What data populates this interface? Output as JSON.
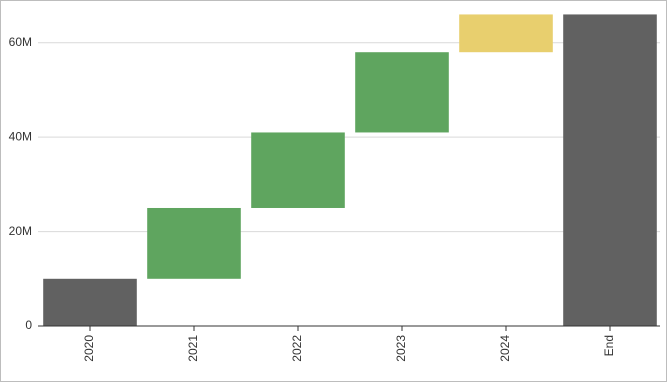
{
  "chart_data": {
    "type": "waterfall",
    "categories": [
      "2020",
      "2021",
      "2022",
      "2023",
      "2024",
      "End"
    ],
    "values": [
      10000000,
      15000000,
      16000000,
      17000000,
      8000000,
      66000000
    ],
    "measure": [
      "relative",
      "relative",
      "relative",
      "relative",
      "relative",
      "total"
    ],
    "colors": [
      "#616161",
      "#5fa55f",
      "#5fa55f",
      "#5fa55f",
      "#e8cf6e",
      "#616161"
    ],
    "ylim": [
      0,
      68000000
    ],
    "yticks": [
      0,
      {
        "value": 20000000,
        "label": "20M"
      },
      {
        "value": 40000000,
        "label": "40M"
      },
      {
        "value": 60000000,
        "label": "60M"
      }
    ],
    "grid": true
  }
}
